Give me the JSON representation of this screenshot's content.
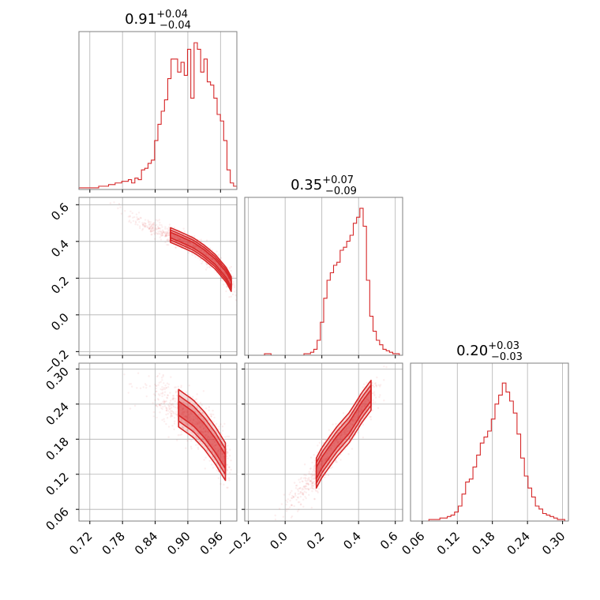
{
  "chart_data": {
    "type": "corner",
    "color": "#d62728",
    "grid": true,
    "parameters": [
      {
        "median": "0.91",
        "plus": "+0.04",
        "minus": "−0.04",
        "range": [
          0.7,
          0.99
        ],
        "ticks": [
          0.72,
          0.78,
          0.84,
          0.9,
          0.96
        ],
        "tick_labels": [
          "0.72",
          "0.78",
          "0.84",
          "0.90",
          "0.96"
        ],
        "hist": [
          0.01,
          0.01,
          0.01,
          0.01,
          0.01,
          0.01,
          0.02,
          0.02,
          0.02,
          0.03,
          0.03,
          0.04,
          0.04,
          0.05,
          0.05,
          0.06,
          0.04,
          0.07,
          0.06,
          0.12,
          0.13,
          0.16,
          0.18,
          0.3,
          0.4,
          0.48,
          0.55,
          0.68,
          0.8,
          0.8,
          0.72,
          0.78,
          0.7,
          0.86,
          0.56,
          0.9,
          0.86,
          0.72,
          0.8,
          0.66,
          0.64,
          0.56,
          0.46,
          0.42,
          0.3,
          0.12,
          0.04,
          0.02
        ],
        "hist_max": 0.92
      },
      {
        "median": "0.35",
        "plus": "+0.07",
        "minus": "−0.09",
        "range": [
          -0.22,
          0.64
        ],
        "ticks": [
          -0.2,
          0.0,
          0.2,
          0.4,
          0.6
        ],
        "tick_labels": [
          "−0.2",
          "0.0",
          "0.2",
          "0.4",
          "0.6"
        ],
        "hist": [
          0.0,
          0.0,
          0.0,
          0.0,
          0.0,
          0.0,
          0.01,
          0.01,
          0.0,
          0.0,
          0.0,
          0.0,
          0.0,
          0.0,
          0.0,
          0.0,
          0.0,
          0.0,
          0.01,
          0.01,
          0.02,
          0.04,
          0.1,
          0.22,
          0.38,
          0.5,
          0.55,
          0.6,
          0.62,
          0.7,
          0.72,
          0.76,
          0.8,
          0.88,
          0.92,
          0.98,
          0.86,
          0.5,
          0.26,
          0.16,
          0.1,
          0.07,
          0.04,
          0.03,
          0.02,
          0.01,
          0.01,
          0.0
        ],
        "hist_max": 1.0
      },
      {
        "median": "0.20",
        "plus": "+0.03",
        "minus": "−0.03",
        "range": [
          0.04,
          0.31
        ],
        "ticks": [
          0.06,
          0.12,
          0.18,
          0.24,
          0.3
        ],
        "tick_labels": [
          "0.06",
          "0.12",
          "0.18",
          "0.24",
          "0.30"
        ],
        "hist": [
          0.0,
          0.0,
          0.0,
          0.0,
          0.0,
          0.01,
          0.01,
          0.01,
          0.02,
          0.02,
          0.03,
          0.04,
          0.06,
          0.1,
          0.18,
          0.26,
          0.28,
          0.36,
          0.44,
          0.52,
          0.56,
          0.6,
          0.68,
          0.78,
          0.84,
          0.92,
          0.86,
          0.8,
          0.72,
          0.58,
          0.42,
          0.3,
          0.22,
          0.16,
          0.1,
          0.08,
          0.05,
          0.04,
          0.03,
          0.02,
          0.01,
          0.01,
          0.0
        ],
        "hist_max": 1.0
      }
    ],
    "y_axes": [
      {
        "row": 1,
        "ticks": [
          0.0,
          0.2,
          0.4,
          0.6
        ],
        "tick_labels": [
          "0.0",
          "0.2",
          "0.4",
          "0.6"
        ],
        "edge_tick_label": "−0.2"
      },
      {
        "row": 2,
        "ticks": [
          0.06,
          0.12,
          0.18,
          0.24,
          0.3
        ],
        "tick_labels": [
          "0.06",
          "0.12",
          "0.18",
          "0.24",
          "0.30"
        ]
      }
    ],
    "joint_panels": [
      {
        "id": "p1-vs-p0",
        "x_param": 0,
        "y_param": 1,
        "path": [
          [
            0.75,
            0.59
          ],
          [
            0.8,
            0.52
          ],
          [
            0.84,
            0.47
          ],
          [
            0.88,
            0.42
          ],
          [
            0.91,
            0.38
          ],
          [
            0.93,
            0.34
          ],
          [
            0.95,
            0.29
          ],
          [
            0.97,
            0.22
          ],
          [
            0.985,
            0.14
          ],
          [
            0.99,
            0.05
          ]
        ],
        "width_y": 0.025
      },
      {
        "id": "p2-vs-p0",
        "x_param": 0,
        "y_param": 2,
        "path": [
          [
            0.78,
            0.28
          ],
          [
            0.84,
            0.255
          ],
          [
            0.88,
            0.235
          ],
          [
            0.91,
            0.215
          ],
          [
            0.93,
            0.195
          ],
          [
            0.95,
            0.17
          ],
          [
            0.97,
            0.14
          ],
          [
            0.98,
            0.115
          ]
        ],
        "width_y": 0.02
      },
      {
        "id": "p2-vs-p1",
        "x_param": 1,
        "y_param": 2,
        "path": [
          [
            -0.05,
            0.06
          ],
          [
            0.05,
            0.08
          ],
          [
            0.15,
            0.11
          ],
          [
            0.2,
            0.14
          ],
          [
            0.28,
            0.175
          ],
          [
            0.35,
            0.2
          ],
          [
            0.42,
            0.235
          ],
          [
            0.48,
            0.26
          ],
          [
            0.56,
            0.29
          ]
        ],
        "width_y": 0.016
      }
    ]
  }
}
